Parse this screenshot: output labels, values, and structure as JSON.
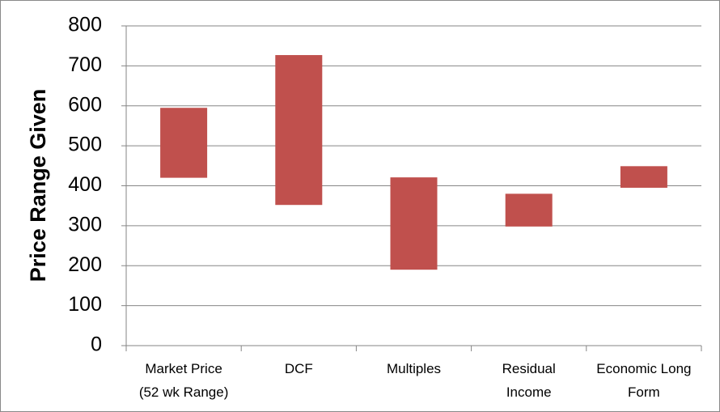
{
  "chart_data": {
    "type": "floating_bar",
    "y_label": "Price Range Given",
    "categories": [
      "Market Price\n(52 wk Range)",
      "DCF",
      "Multiples",
      "Residual\nIncome",
      "Economic Long\nForm"
    ],
    "low": [
      420,
      352,
      190,
      298,
      395
    ],
    "high": [
      595,
      727,
      421,
      380,
      449
    ],
    "color": "#c0504d",
    "ylim": [
      0,
      800
    ],
    "yticks": [
      0,
      100,
      200,
      300,
      400,
      500,
      600,
      700,
      800
    ],
    "grid": true
  }
}
